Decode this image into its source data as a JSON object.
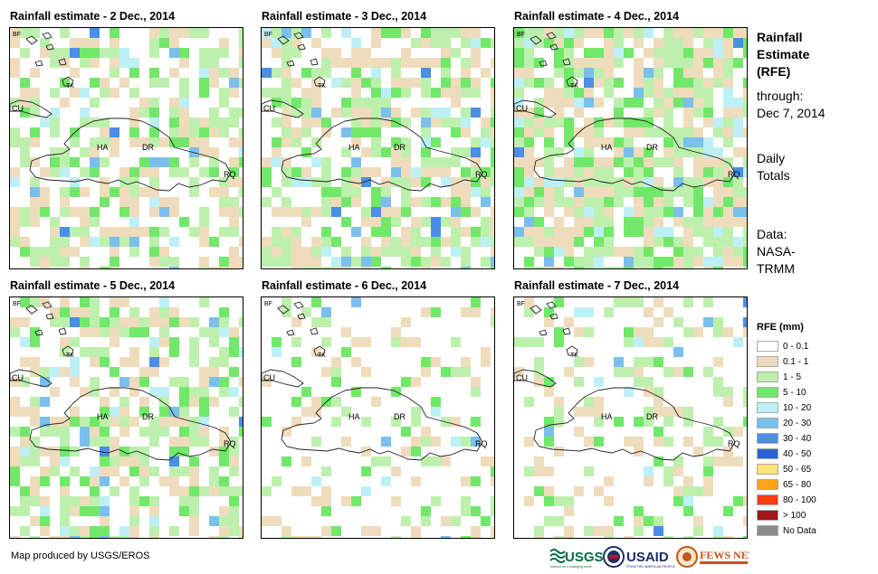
{
  "panels": [
    {
      "title": "Rainfall estimate - 2 Dec., 2014",
      "level": 0.55,
      "seed": 2
    },
    {
      "title": "Rainfall estimate - 3 Dec., 2014",
      "level": 0.65,
      "seed": 3
    },
    {
      "title": "Rainfall estimate - 4 Dec., 2014",
      "level": 0.8,
      "seed": 4
    },
    {
      "title": "Rainfall estimate - 5 Dec., 2014",
      "level": 0.6,
      "seed": 5
    },
    {
      "title": "Rainfall estimate - 6 Dec., 2014",
      "level": 0.22,
      "seed": 6
    },
    {
      "title": "Rainfall estimate - 7 Dec., 2014",
      "level": 0.28,
      "seed": 7
    }
  ],
  "map_labels": {
    "bf": "BF",
    "tk": "TK",
    "cu": "CU",
    "ha": "HA",
    "dr": "DR",
    "rq": "RQ"
  },
  "side": {
    "title_line1": "Rainfall",
    "title_line2": "Estimate",
    "title_line3": "(RFE)",
    "through_label": "through:",
    "through_date": "Dec 7, 2014",
    "daily_line1": "Daily",
    "daily_line2": "Totals",
    "data_line1": "Data:",
    "data_line2": "NASA-",
    "data_line3": "TRMM"
  },
  "legend": {
    "title": "RFE (mm)",
    "items": [
      {
        "label": "0 - 0.1",
        "color": "#ffffff"
      },
      {
        "label": "0.1 - 1",
        "color": "#efdcbc"
      },
      {
        "label": "1 - 5",
        "color": "#bdf0ad"
      },
      {
        "label": "5 - 10",
        "color": "#72e86a"
      },
      {
        "label": "10 - 20",
        "color": "#bdf0f5"
      },
      {
        "label": "20 - 30",
        "color": "#7bbfec"
      },
      {
        "label": "30 - 40",
        "color": "#4a8ee6"
      },
      {
        "label": "40 - 50",
        "color": "#2a62d6"
      },
      {
        "label": "50 - 65",
        "color": "#ffe27a"
      },
      {
        "label": "65 - 80",
        "color": "#ffa31a"
      },
      {
        "label": "80 - 100",
        "color": "#ff3a10"
      },
      {
        "label": "> 100",
        "color": "#a0161a"
      },
      {
        "label": "No Data",
        "color": "#8c8c8c"
      }
    ]
  },
  "footer": {
    "credit": "Map produced by USGS/EROS"
  },
  "logos": {
    "usgs": "USGS",
    "usgs_tagline": "science for a changing world",
    "usaid": "USAID",
    "usaid_tagline": "FROM THE AMERICAN PEOPLE",
    "fews": "FEWS NET"
  }
}
